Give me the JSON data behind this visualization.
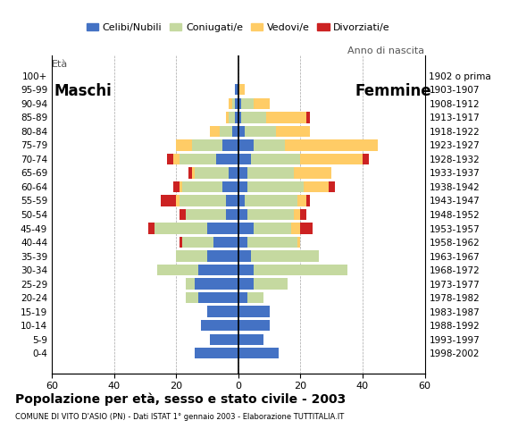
{
  "age_groups": [
    "0-4",
    "5-9",
    "10-14",
    "15-19",
    "20-24",
    "25-29",
    "30-34",
    "35-39",
    "40-44",
    "45-49",
    "50-54",
    "55-59",
    "60-64",
    "65-69",
    "70-74",
    "75-79",
    "80-84",
    "85-89",
    "90-94",
    "95-99",
    "100+"
  ],
  "birth_years": [
    "1998-2002",
    "1993-1997",
    "1988-1992",
    "1983-1987",
    "1978-1982",
    "1973-1977",
    "1968-1972",
    "1963-1967",
    "1958-1962",
    "1953-1957",
    "1948-1952",
    "1943-1947",
    "1938-1942",
    "1933-1937",
    "1928-1932",
    "1923-1927",
    "1918-1922",
    "1913-1917",
    "1908-1912",
    "1903-1907",
    "1902 o prima"
  ],
  "males": {
    "celibe": [
      14,
      9,
      12,
      10,
      13,
      14,
      13,
      10,
      8,
      10,
      4,
      4,
      5,
      3,
      7,
      5,
      2,
      1,
      1,
      1,
      0
    ],
    "coniugato": [
      0,
      0,
      0,
      0,
      4,
      3,
      13,
      10,
      10,
      17,
      13,
      15,
      13,
      11,
      12,
      10,
      4,
      2,
      1,
      0,
      0
    ],
    "vedovo": [
      0,
      0,
      0,
      0,
      0,
      0,
      0,
      0,
      0,
      0,
      0,
      1,
      1,
      1,
      2,
      5,
      3,
      1,
      1,
      0,
      0
    ],
    "divorziato": [
      0,
      0,
      0,
      0,
      0,
      0,
      0,
      0,
      1,
      2,
      2,
      5,
      2,
      1,
      2,
      0,
      0,
      0,
      0,
      0,
      0
    ]
  },
  "females": {
    "nubile": [
      13,
      8,
      10,
      10,
      3,
      5,
      5,
      4,
      3,
      5,
      3,
      2,
      3,
      3,
      4,
      5,
      2,
      1,
      1,
      0,
      0
    ],
    "coniugata": [
      0,
      0,
      0,
      0,
      5,
      11,
      30,
      22,
      16,
      12,
      15,
      17,
      18,
      15,
      16,
      10,
      10,
      8,
      4,
      0,
      0
    ],
    "vedova": [
      0,
      0,
      0,
      0,
      0,
      0,
      0,
      0,
      1,
      3,
      2,
      3,
      8,
      12,
      20,
      30,
      11,
      13,
      5,
      2,
      0
    ],
    "divorziata": [
      0,
      0,
      0,
      0,
      0,
      0,
      0,
      0,
      0,
      4,
      2,
      1,
      2,
      0,
      2,
      0,
      0,
      1,
      0,
      0,
      0
    ]
  },
  "colors": {
    "celibe": "#4472C4",
    "coniugato": "#c5d9a0",
    "vedovo": "#FFCC66",
    "divorziato": "#CC2222"
  },
  "xlim": 60,
  "title": "Popolazione per età, sesso e stato civile - 2003",
  "subtitle": "COMUNE DI VITO D'ASIO (PN) - Dati ISTAT 1° gennaio 2003 - Elaborazione TUTTITALIA.IT",
  "legend_labels": [
    "Celibi/Nubili",
    "Coniugati/e",
    "Vedovi/e",
    "Divorziati/e"
  ],
  "eta_label": "Età",
  "anno_label": "Anno di nascita",
  "maschi_label": "Maschi",
  "femmine_label": "Femmine"
}
